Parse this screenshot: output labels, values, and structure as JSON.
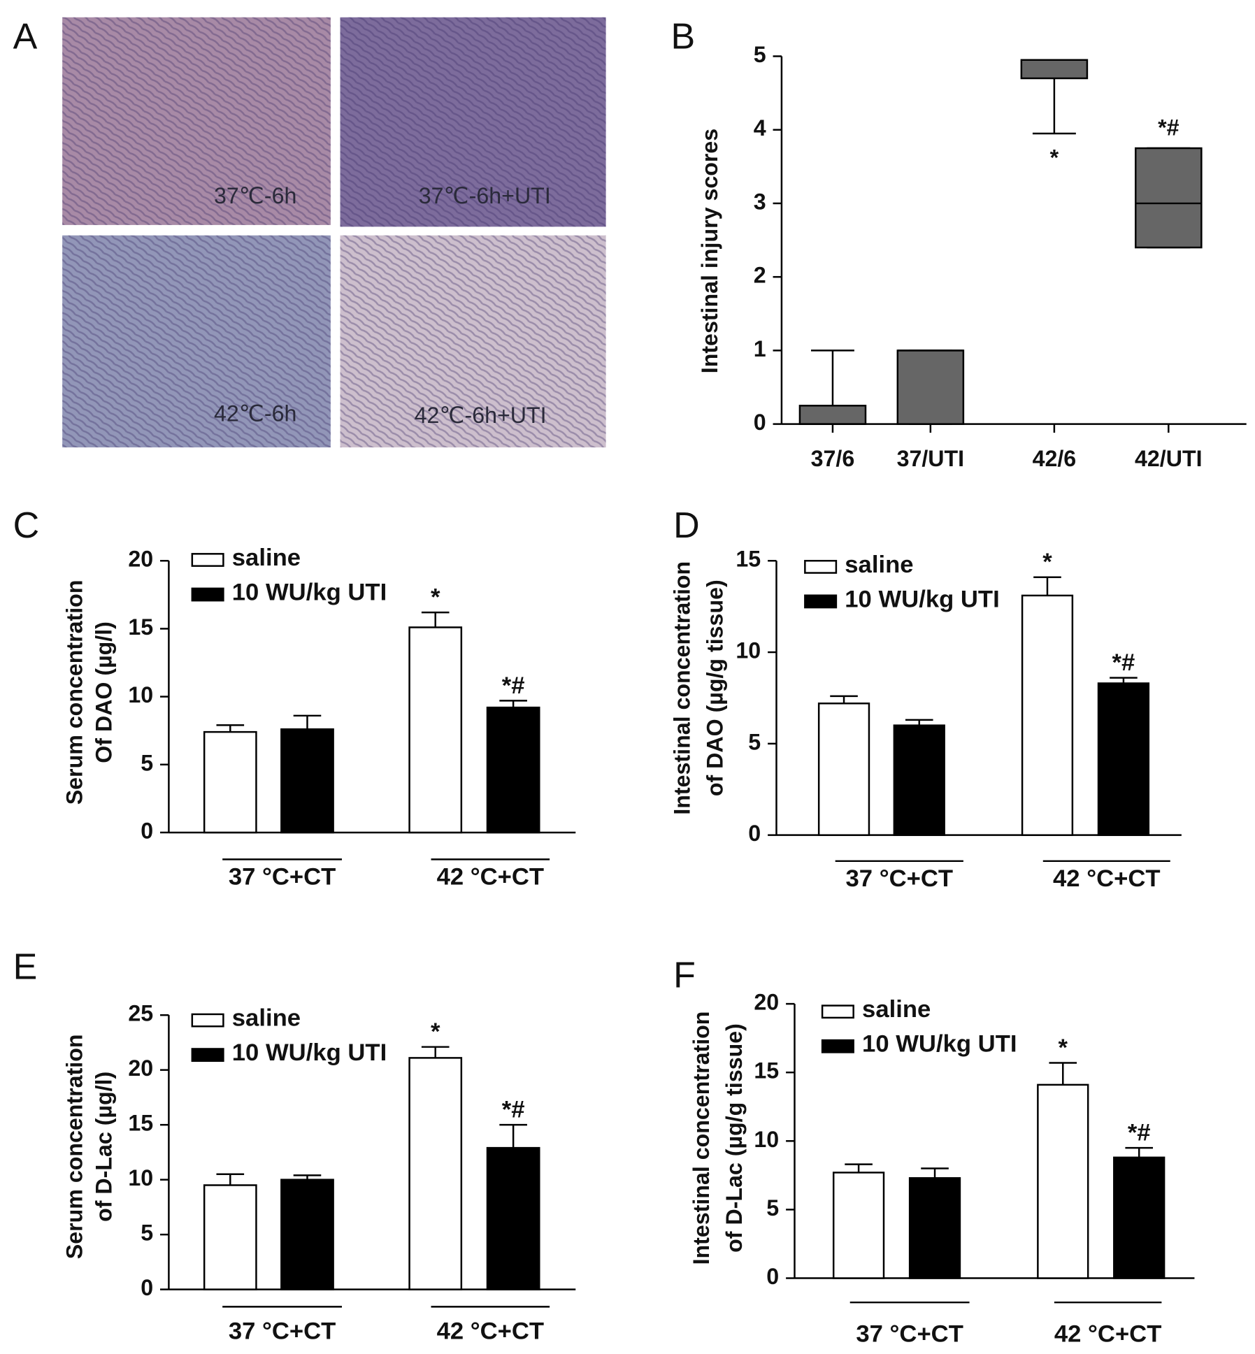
{
  "chart_data": [
    {
      "type": "image-grid",
      "panel_label": "A",
      "images": [
        "37℃-6h",
        "37℃-6h+UTI",
        "42℃-6h",
        "42℃-6h+UTI"
      ]
    },
    {
      "type": "box",
      "panel_label": "B",
      "ylabel": "Intestinal injury scores",
      "categories": [
        "37/6",
        "37/UTI",
        "42/6",
        "42/UTI"
      ],
      "min": [
        0,
        0,
        3.95,
        2.4
      ],
      "q1": [
        0,
        0,
        4.7,
        2.4
      ],
      "median": [
        0,
        1,
        4.95,
        3
      ],
      "q3": [
        0.25,
        1,
        4.95,
        3.75
      ],
      "max": [
        1,
        1,
        4.95,
        3.75
      ],
      "annotations": [
        null,
        null,
        "*",
        "*#"
      ],
      "color": "#666666",
      "ylim": [
        0,
        5
      ],
      "yticks": [
        0,
        1,
        2,
        3,
        4,
        5
      ]
    },
    {
      "type": "bar",
      "panel_label": "C",
      "ylabel": [
        "Serum concentration",
        "Of  DAO (µg/l)"
      ],
      "categories": [
        "37 °C+CT",
        "42 °C+CT"
      ],
      "series": [
        {
          "name": "saline",
          "color": "#ffffff",
          "values": [
            7.4,
            15.1
          ],
          "errors": [
            0.5,
            1.1
          ],
          "annotations": [
            null,
            "*"
          ]
        },
        {
          "name": "10 WU/kg UTI",
          "color": "#000000",
          "values": [
            7.6,
            9.2
          ],
          "errors": [
            1.0,
            0.5
          ],
          "annotations": [
            null,
            "*#"
          ]
        }
      ],
      "ylim": [
        0,
        20
      ],
      "yticks": [
        0,
        5,
        10,
        15,
        20
      ]
    },
    {
      "type": "bar",
      "panel_label": "D",
      "ylabel": [
        "Intestinal concentration",
        "of DAO (µg/g tissue)"
      ],
      "categories": [
        "37 °C+CT",
        "42 °C+CT"
      ],
      "series": [
        {
          "name": "saline",
          "color": "#ffffff",
          "values": [
            7.2,
            13.1
          ],
          "errors": [
            0.4,
            1.0
          ],
          "annotations": [
            null,
            "*"
          ]
        },
        {
          "name": "10 WU/kg UTI",
          "color": "#000000",
          "values": [
            6.0,
            8.3
          ],
          "errors": [
            0.3,
            0.3
          ],
          "annotations": [
            null,
            "*#"
          ]
        }
      ],
      "ylim": [
        0,
        15
      ],
      "yticks": [
        0,
        5,
        10,
        15
      ]
    },
    {
      "type": "bar",
      "panel_label": "E",
      "ylabel": [
        "Serum concentration",
        "of  D-Lac (µg/l)"
      ],
      "categories": [
        "37 °C+CT",
        "42 °C+CT"
      ],
      "series": [
        {
          "name": "saline",
          "color": "#ffffff",
          "values": [
            9.5,
            21.1
          ],
          "errors": [
            1.0,
            1.0
          ],
          "annotations": [
            null,
            "*"
          ]
        },
        {
          "name": "10 WU/kg UTI",
          "color": "#000000",
          "values": [
            10.0,
            12.9
          ],
          "errors": [
            0.4,
            2.1
          ],
          "annotations": [
            null,
            "*#"
          ]
        }
      ],
      "ylim": [
        0,
        25
      ],
      "yticks": [
        0,
        5,
        10,
        15,
        20,
        25
      ]
    },
    {
      "type": "bar",
      "panel_label": "F",
      "ylabel": [
        "Intestinal concentration",
        "of D-Lac (µg/g tissue)"
      ],
      "categories": [
        "37 °C+CT",
        "42 °C+CT"
      ],
      "series": [
        {
          "name": "saline",
          "color": "#ffffff",
          "values": [
            7.7,
            14.1
          ],
          "errors": [
            0.6,
            1.6
          ],
          "annotations": [
            null,
            "*"
          ]
        },
        {
          "name": "10 WU/kg UTI",
          "color": "#000000",
          "values": [
            7.3,
            8.8
          ],
          "errors": [
            0.7,
            0.7
          ],
          "annotations": [
            null,
            "*#"
          ]
        }
      ],
      "ylim": [
        0,
        20
      ],
      "yticks": [
        0,
        5,
        10,
        15,
        20
      ]
    }
  ]
}
